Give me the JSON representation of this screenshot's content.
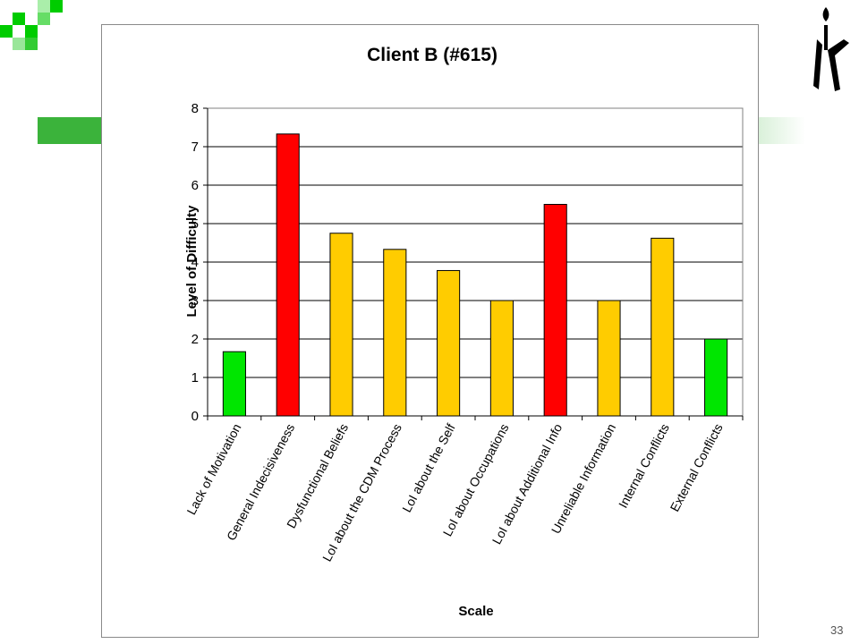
{
  "slide": {
    "number": "33"
  },
  "logo": {
    "icon": "candle-logo-icon"
  },
  "chart_data": {
    "type": "bar",
    "title": "Client B (#615)",
    "xlabel": "Scale",
    "ylabel": "Level of Difficulty",
    "ylim": [
      0,
      8
    ],
    "yticks": [
      0,
      1,
      2,
      3,
      4,
      5,
      6,
      7,
      8
    ],
    "grid": true,
    "legend": "none",
    "categories": [
      "Lack of Motivation",
      "General Indecisiveness",
      "Dysfunctional Beliefs",
      "LoI about the CDM Process",
      "LoI about the Self",
      "LoI about Occupations",
      "LoI about Additional Info",
      "Unreliable Information",
      "Internal Conflicts",
      "External Conflicts"
    ],
    "values": [
      1.67,
      7.33,
      4.75,
      4.33,
      3.78,
      3.0,
      5.5,
      3.0,
      4.62,
      2.0
    ],
    "bar_colors": [
      "#00e600",
      "#ff0000",
      "#ffcc00",
      "#ffcc00",
      "#ffcc00",
      "#ffcc00",
      "#ff0000",
      "#ffcc00",
      "#ffcc00",
      "#00e600"
    ]
  }
}
